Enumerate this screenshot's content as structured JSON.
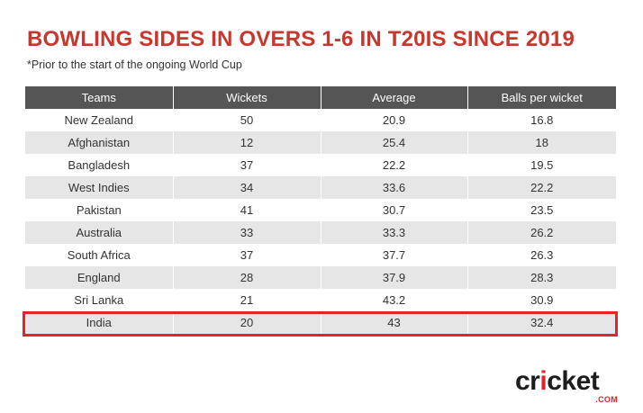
{
  "title": "BOWLING SIDES IN OVERS 1-6 IN T20IS SINCE 2019",
  "subtitle": "*Prior to the start of the ongoing World Cup",
  "table": {
    "headers": [
      "Teams",
      "Wickets",
      "Average",
      "Balls per wicket"
    ],
    "rows": [
      [
        "New Zealand",
        "50",
        "20.9",
        "16.8"
      ],
      [
        "Afghanistan",
        "12",
        "25.4",
        "18"
      ],
      [
        "Bangladesh",
        "37",
        "22.2",
        "19.5"
      ],
      [
        "West Indies",
        "34",
        "33.6",
        "22.2"
      ],
      [
        "Pakistan",
        "41",
        "30.7",
        "23.5"
      ],
      [
        "Australia",
        "33",
        "33.3",
        "26.2"
      ],
      [
        "South Africa",
        "37",
        "37.7",
        "26.3"
      ],
      [
        "England",
        "28",
        "37.9",
        "28.3"
      ],
      [
        "Sri Lanka",
        "21",
        "43.2",
        "30.9"
      ],
      [
        "India",
        "20",
        "43",
        "32.4"
      ]
    ],
    "highlighted_row": "India"
  },
  "logo": {
    "word_start": "cr",
    "word_ball": "i",
    "word_end": "cket",
    "suffix": ".COM"
  },
  "colors": {
    "title": "#c8362e",
    "header_bg": "#555555",
    "stripe": "#e6e6e6",
    "highlight": "#e3222a"
  }
}
